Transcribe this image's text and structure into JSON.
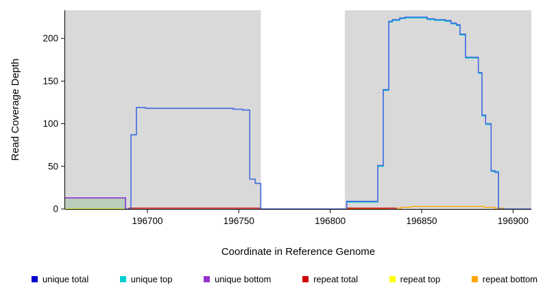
{
  "chart_data": {
    "type": "line",
    "title": "",
    "xlabel": "Coordinate in Reference Genome",
    "ylabel": "Read Coverage Depth",
    "x_range": [
      196655,
      196910
    ],
    "y_range": [
      0,
      233
    ],
    "x_ticks": [
      196700,
      196750,
      196800,
      196850,
      196900
    ],
    "y_ticks": [
      0,
      50,
      100,
      150,
      200
    ],
    "grid": false,
    "legend_position": "bottom",
    "background": {
      "plot_bg": "#d9d9d9",
      "gap_region": {
        "x_start": 196762,
        "x_end": 196808,
        "color": "#ffffff"
      },
      "left_underfill": {
        "x_start": 196655,
        "x_end": 196688,
        "y_top": 13,
        "color": "rgba(143,188,143,0.40)"
      }
    },
    "series": [
      {
        "id": "repeat-top",
        "name": "repeat top",
        "color": "#ffff00",
        "width": 1.3,
        "points": [
          [
            196655,
            0
          ],
          [
            196690,
            0
          ]
        ]
      },
      {
        "id": "repeat-bottom",
        "name": "repeat bottom",
        "color": "#ffa500",
        "width": 1.3,
        "points": [
          [
            196809,
            0
          ],
          [
            196832,
            0
          ],
          [
            196832,
            1
          ],
          [
            196839,
            1
          ],
          [
            196839,
            2
          ],
          [
            196844,
            2
          ],
          [
            196844,
            3
          ],
          [
            196884,
            3
          ],
          [
            196884,
            2
          ],
          [
            196890,
            2
          ],
          [
            196890,
            1
          ],
          [
            196895,
            1
          ],
          [
            196895,
            0
          ],
          [
            196910,
            0
          ]
        ]
      },
      {
        "id": "repeat-total",
        "name": "repeat total",
        "color": "#cd0000",
        "width": 1.3,
        "points": [
          [
            196690,
            0
          ],
          [
            196690,
            1
          ],
          [
            196762,
            1
          ],
          [
            196762,
            0
          ],
          [
            196809,
            0
          ],
          [
            196809,
            1
          ],
          [
            196836,
            1
          ],
          [
            196836,
            0
          ]
        ]
      },
      {
        "id": "unique-top",
        "name": "unique top",
        "color": "#00ced1",
        "width": 1.3,
        "points": [
          [
            196809,
            8
          ],
          [
            196826,
            8
          ],
          [
            196826,
            50
          ],
          [
            196829,
            50
          ],
          [
            196829,
            139
          ],
          [
            196832,
            139
          ],
          [
            196832,
            219
          ],
          [
            196834,
            219
          ],
          [
            196834,
            221
          ],
          [
            196838,
            221
          ],
          [
            196838,
            223
          ],
          [
            196841,
            223
          ],
          [
            196841,
            224
          ],
          [
            196853,
            224
          ],
          [
            196853,
            222
          ],
          [
            196857,
            222
          ],
          [
            196857,
            221
          ],
          [
            196863,
            221
          ],
          [
            196863,
            220
          ],
          [
            196866,
            220
          ],
          [
            196866,
            217
          ],
          [
            196869,
            217
          ],
          [
            196869,
            215
          ],
          [
            196871,
            215
          ],
          [
            196871,
            204
          ],
          [
            196874,
            204
          ],
          [
            196874,
            177
          ],
          [
            196881,
            177
          ],
          [
            196881,
            159
          ],
          [
            196883,
            159
          ],
          [
            196883,
            109
          ],
          [
            196885,
            109
          ],
          [
            196885,
            99
          ],
          [
            196888,
            99
          ],
          [
            196888,
            44
          ],
          [
            196892,
            44
          ],
          [
            196892,
            0
          ]
        ]
      },
      {
        "id": "unique-total",
        "name": "unique total",
        "color": "#4169e1",
        "width": 1.6,
        "points": [
          [
            196655,
            13
          ],
          [
            196688,
            13
          ],
          [
            196688,
            0
          ],
          [
            196691,
            0
          ],
          [
            196691,
            87
          ],
          [
            196694,
            87
          ],
          [
            196694,
            119
          ],
          [
            196699,
            119
          ],
          [
            196699,
            118
          ],
          [
            196747,
            118
          ],
          [
            196747,
            117
          ],
          [
            196752,
            117
          ],
          [
            196752,
            116
          ],
          [
            196756,
            116
          ],
          [
            196756,
            35
          ],
          [
            196759,
            35
          ],
          [
            196759,
            30
          ],
          [
            196762,
            30
          ],
          [
            196762,
            0
          ],
          [
            196809,
            0
          ],
          [
            196809,
            9
          ],
          [
            196826,
            9
          ],
          [
            196826,
            51
          ],
          [
            196829,
            51
          ],
          [
            196829,
            140
          ],
          [
            196832,
            140
          ],
          [
            196832,
            220
          ],
          [
            196834,
            220
          ],
          [
            196834,
            222
          ],
          [
            196838,
            222
          ],
          [
            196838,
            224
          ],
          [
            196841,
            224
          ],
          [
            196841,
            225
          ],
          [
            196853,
            225
          ],
          [
            196853,
            223
          ],
          [
            196857,
            223
          ],
          [
            196857,
            222
          ],
          [
            196863,
            222
          ],
          [
            196863,
            221
          ],
          [
            196866,
            221
          ],
          [
            196866,
            218
          ],
          [
            196869,
            218
          ],
          [
            196869,
            216
          ],
          [
            196871,
            216
          ],
          [
            196871,
            205
          ],
          [
            196874,
            205
          ],
          [
            196874,
            178
          ],
          [
            196881,
            178
          ],
          [
            196881,
            160
          ],
          [
            196883,
            160
          ],
          [
            196883,
            110
          ],
          [
            196885,
            110
          ],
          [
            196885,
            100
          ],
          [
            196888,
            100
          ],
          [
            196888,
            45
          ],
          [
            196890,
            45
          ],
          [
            196890,
            43
          ],
          [
            196892,
            43
          ],
          [
            196892,
            0
          ],
          [
            196910,
            0
          ]
        ]
      },
      {
        "id": "unique-bottom",
        "name": "unique bottom",
        "color": "#9932cc",
        "width": 1.4,
        "points": [
          [
            196655,
            13
          ],
          [
            196688,
            13
          ],
          [
            196688,
            0
          ]
        ]
      }
    ]
  },
  "legend": {
    "items": [
      {
        "label": "unique total",
        "color": "#0000cd"
      },
      {
        "label": "unique top",
        "color": "#00ced1"
      },
      {
        "label": "unique bottom",
        "color": "#9932cc"
      },
      {
        "label": "repeat total",
        "color": "#cd0000"
      },
      {
        "label": "repeat top",
        "color": "#ffff00"
      },
      {
        "label": "repeat bottom",
        "color": "#ffa500"
      }
    ]
  }
}
